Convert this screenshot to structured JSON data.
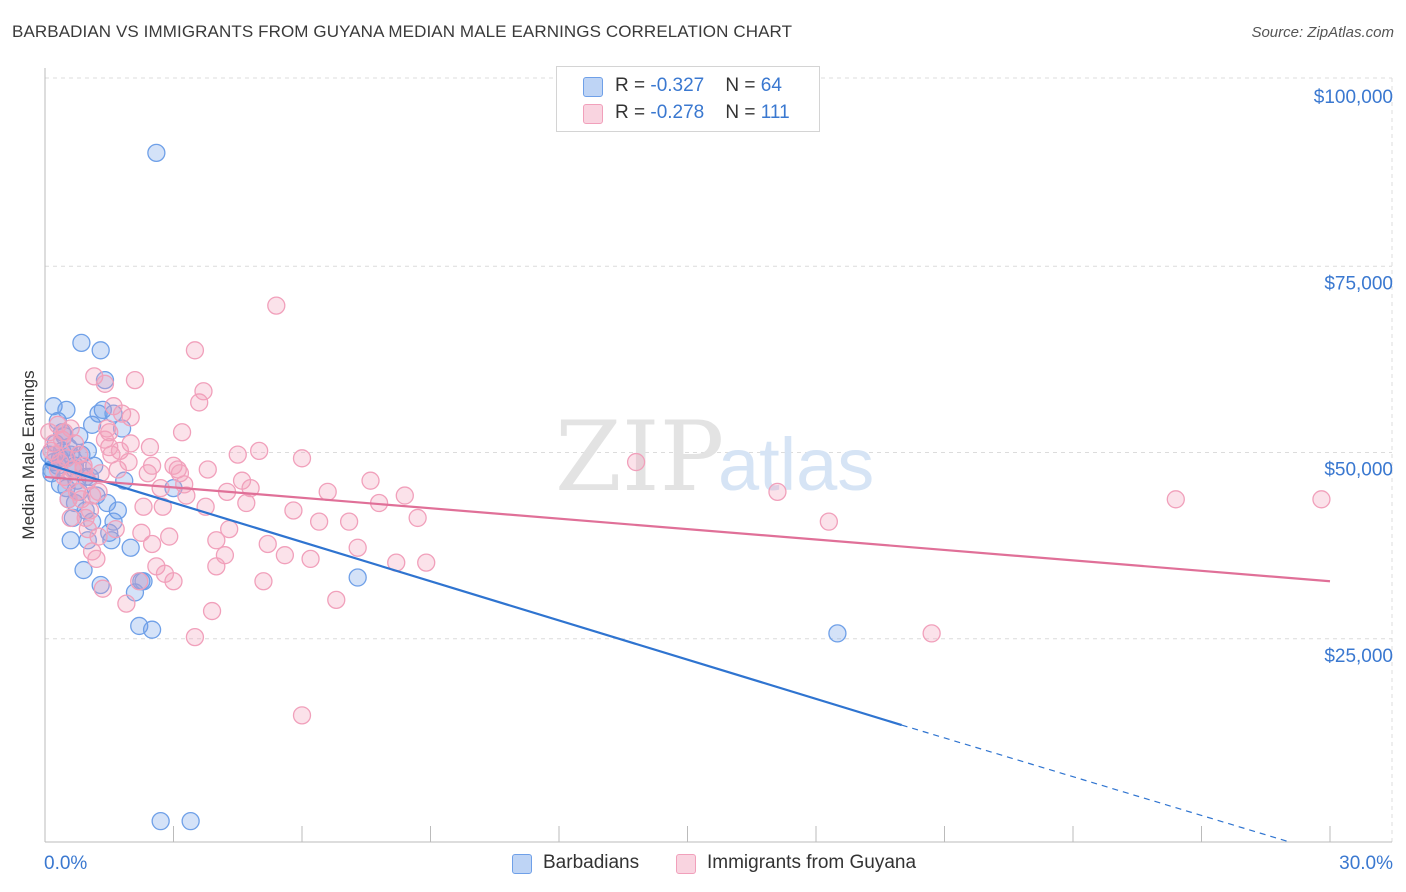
{
  "header": {
    "title": "BARBADIAN VS IMMIGRANTS FROM GUYANA MEDIAN MALE EARNINGS CORRELATION CHART",
    "source": "Source: ZipAtlas.com"
  },
  "watermark": {
    "zip": "ZIP",
    "atlas": "atlas"
  },
  "legend": {
    "rows": [
      {
        "r_label": "R = ",
        "r_value": "-0.327",
        "n_label": "N = ",
        "n_value": "64",
        "color": "#6fa0e8"
      },
      {
        "r_label": "R = ",
        "r_value": "-0.278",
        "n_label": "N = ",
        "n_value": "111",
        "color": "#f1a0bb"
      }
    ]
  },
  "bottom_legend": [
    {
      "label": "Barbadians",
      "color": "#6fa0e8"
    },
    {
      "label": "Immigrants from Guyana",
      "color": "#f1a0bb"
    }
  ],
  "chart_data": {
    "type": "scatter",
    "title": "BARBADIAN VS IMMIGRANTS FROM GUYANA MEDIAN MALE EARNINGS CORRELATION CHART",
    "xlabel": "",
    "ylabel": "Median Male Earnings",
    "xlim": [
      0,
      30
    ],
    "ylim": [
      0,
      105000
    ],
    "x_tick_labels": [
      {
        "value": 0,
        "label": "0.0%"
      },
      {
        "value": 30,
        "label": "30.0%"
      }
    ],
    "y_tick_labels": [
      {
        "value": 25000,
        "label": "$25,000"
      },
      {
        "value": 50000,
        "label": "$50,000"
      },
      {
        "value": 75000,
        "label": "$75,000"
      },
      {
        "value": 100000,
        "label": "$100,000"
      }
    ],
    "grid": true,
    "legend_position": "top-center",
    "series": [
      {
        "name": "Barbadians",
        "color": "#6fa0e8",
        "line_color": "#2f74d0",
        "trend": {
          "x0": 0.0,
          "y0": 50800,
          "x1": 20.0,
          "y1": 15700,
          "dashed_to_x": 29.0,
          "dashed_to_y": 100
        },
        "points": [
          [
            0.1,
            52000
          ],
          [
            0.15,
            49500
          ],
          [
            0.2,
            51000
          ],
          [
            0.25,
            53500
          ],
          [
            0.3,
            50500
          ],
          [
            0.3,
            56500
          ],
          [
            0.35,
            48000
          ],
          [
            0.4,
            52500
          ],
          [
            0.45,
            54500
          ],
          [
            0.5,
            47500
          ],
          [
            0.5,
            51500
          ],
          [
            0.55,
            46000
          ],
          [
            0.6,
            52000
          ],
          [
            0.6,
            40500
          ],
          [
            0.7,
            45500
          ],
          [
            0.7,
            50000
          ],
          [
            0.75,
            48500
          ],
          [
            0.8,
            47000
          ],
          [
            0.85,
            52000
          ],
          [
            0.85,
            67000
          ],
          [
            0.9,
            36500
          ],
          [
            0.95,
            44500
          ],
          [
            1.0,
            40500
          ],
          [
            1.05,
            49000
          ],
          [
            1.1,
            43000
          ],
          [
            1.1,
            56000
          ],
          [
            1.15,
            50500
          ],
          [
            1.2,
            46500
          ],
          [
            1.25,
            57500
          ],
          [
            1.3,
            66000
          ],
          [
            1.35,
            58000
          ],
          [
            1.4,
            62000
          ],
          [
            1.45,
            45500
          ],
          [
            1.5,
            41500
          ],
          [
            1.55,
            40500
          ],
          [
            1.6,
            43000
          ],
          [
            1.7,
            44500
          ],
          [
            1.8,
            55500
          ],
          [
            1.85,
            48500
          ],
          [
            2.0,
            39500
          ],
          [
            2.1,
            33500
          ],
          [
            2.2,
            29000
          ],
          [
            2.3,
            35000
          ],
          [
            2.5,
            28500
          ],
          [
            2.6,
            92500
          ],
          [
            2.7,
            2800
          ],
          [
            3.4,
            2800
          ],
          [
            3.0,
            47500
          ],
          [
            7.3,
            35500
          ],
          [
            18.5,
            28000
          ],
          [
            0.2,
            58500
          ],
          [
            0.5,
            58000
          ],
          [
            0.55,
            53000
          ],
          [
            0.65,
            43500
          ],
          [
            0.95,
            49000
          ],
          [
            1.3,
            34500
          ],
          [
            2.25,
            35000
          ],
          [
            0.35,
            51500
          ],
          [
            0.8,
            54500
          ],
          [
            0.15,
            50000
          ],
          [
            1.0,
            52500
          ],
          [
            1.6,
            57500
          ],
          [
            0.4,
            55000
          ],
          [
            0.7,
            50500
          ]
        ]
      },
      {
        "name": "Immigrants from Guyana",
        "color": "#f1a0bb",
        "line_color": "#e07098",
        "trend": {
          "x0": 0.0,
          "y0": 49000,
          "x1": 30.0,
          "y1": 35000
        },
        "points": [
          [
            0.1,
            55000
          ],
          [
            0.2,
            53500
          ],
          [
            0.25,
            52000
          ],
          [
            0.3,
            56000
          ],
          [
            0.35,
            51000
          ],
          [
            0.4,
            54000
          ],
          [
            0.45,
            49000
          ],
          [
            0.5,
            51500
          ],
          [
            0.55,
            48500
          ],
          [
            0.6,
            55500
          ],
          [
            0.65,
            50000
          ],
          [
            0.7,
            53500
          ],
          [
            0.75,
            47000
          ],
          [
            0.8,
            52000
          ],
          [
            0.85,
            46000
          ],
          [
            0.9,
            50500
          ],
          [
            0.95,
            43500
          ],
          [
            1.0,
            48500
          ],
          [
            1.05,
            44500
          ],
          [
            1.1,
            46500
          ],
          [
            1.15,
            62500
          ],
          [
            1.2,
            38000
          ],
          [
            1.25,
            41000
          ],
          [
            1.3,
            49500
          ],
          [
            1.35,
            34000
          ],
          [
            1.4,
            61500
          ],
          [
            1.45,
            55500
          ],
          [
            1.5,
            53000
          ],
          [
            1.55,
            52000
          ],
          [
            1.6,
            58500
          ],
          [
            1.65,
            42000
          ],
          [
            1.7,
            50000
          ],
          [
            1.8,
            57500
          ],
          [
            1.9,
            32000
          ],
          [
            2.0,
            53500
          ],
          [
            2.1,
            62000
          ],
          [
            2.2,
            35000
          ],
          [
            2.3,
            45000
          ],
          [
            2.4,
            49500
          ],
          [
            2.5,
            50500
          ],
          [
            2.6,
            37000
          ],
          [
            2.7,
            47500
          ],
          [
            2.8,
            36000
          ],
          [
            2.9,
            41000
          ],
          [
            3.0,
            50500
          ],
          [
            3.1,
            50000
          ],
          [
            3.2,
            55000
          ],
          [
            3.3,
            46500
          ],
          [
            3.5,
            66000
          ],
          [
            3.6,
            59000
          ],
          [
            3.7,
            60500
          ],
          [
            3.8,
            50000
          ],
          [
            3.9,
            31000
          ],
          [
            4.0,
            40500
          ],
          [
            4.2,
            38500
          ],
          [
            4.3,
            42000
          ],
          [
            4.5,
            52000
          ],
          [
            4.6,
            48500
          ],
          [
            4.7,
            45500
          ],
          [
            4.8,
            47500
          ],
          [
            5.0,
            52500
          ],
          [
            5.1,
            35000
          ],
          [
            5.2,
            40000
          ],
          [
            5.4,
            72000
          ],
          [
            5.6,
            38500
          ],
          [
            5.8,
            44500
          ],
          [
            6.0,
            51500
          ],
          [
            6.2,
            38000
          ],
          [
            6.4,
            43000
          ],
          [
            6.6,
            47000
          ],
          [
            6.8,
            32500
          ],
          [
            7.1,
            43000
          ],
          [
            7.3,
            39500
          ],
          [
            7.6,
            48500
          ],
          [
            7.8,
            45500
          ],
          [
            8.2,
            37500
          ],
          [
            8.4,
            46500
          ],
          [
            8.7,
            43500
          ],
          [
            8.9,
            37500
          ],
          [
            13.8,
            51000
          ],
          [
            17.1,
            47000
          ],
          [
            18.3,
            43000
          ],
          [
            20.7,
            28000
          ],
          [
            26.4,
            46000
          ],
          [
            29.8,
            46000
          ],
          [
            6.0,
            17000
          ],
          [
            0.3,
            50000
          ],
          [
            0.6,
            43500
          ],
          [
            1.0,
            42000
          ],
          [
            1.5,
            55000
          ],
          [
            2.0,
            57000
          ],
          [
            2.5,
            40000
          ],
          [
            3.0,
            35000
          ],
          [
            3.5,
            27500
          ],
          [
            4.0,
            37000
          ],
          [
            0.45,
            55000
          ],
          [
            0.9,
            50000
          ],
          [
            1.25,
            47000
          ],
          [
            1.75,
            52500
          ],
          [
            2.25,
            41500
          ],
          [
            2.75,
            45000
          ],
          [
            3.25,
            48000
          ],
          [
            3.75,
            45000
          ],
          [
            4.25,
            47000
          ],
          [
            0.15,
            52500
          ],
          [
            0.55,
            46000
          ],
          [
            1.1,
            39000
          ],
          [
            1.95,
            51000
          ],
          [
            2.45,
            53000
          ],
          [
            3.15,
            49500
          ],
          [
            1.4,
            54000
          ]
        ]
      }
    ]
  }
}
